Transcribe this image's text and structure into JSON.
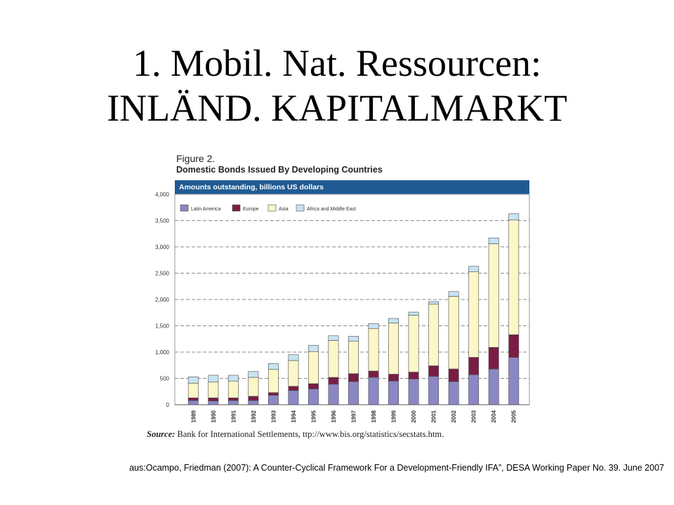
{
  "slide": {
    "title_line1": "1. Mobil. Nat. Ressourcen:",
    "title_line2": "INLÄND. KAPITALMARKT",
    "citation": "aus:Ocampo, Friedman (2007): A Counter-Cyclical Framework For a Development-Friendly IFA”, DESA Working Paper No. 39. June 2007"
  },
  "figure": {
    "label": "Figure 2.",
    "title": "Domestic Bonds Issued By Developing Countries",
    "header": "Amounts outstanding, billions US dollars",
    "source_label": "Source:",
    "source_text": "Bank for International Settlements, ttp://www.bis.org/statistics/secstats.htm."
  },
  "colors": {
    "header_bg": "#1f5b92",
    "latin_america": "#8b87c4",
    "europe": "#7a1d45",
    "asia": "#fbf7c6",
    "africa_middle_east": "#c6e4f2"
  },
  "chart_data": {
    "type": "bar",
    "stacked": true,
    "categories": [
      "1989",
      "1990",
      "1991",
      "1992",
      "1993",
      "1994",
      "1995",
      "1996",
      "1997",
      "1998",
      "1999",
      "2000",
      "2001",
      "2002",
      "2003",
      "2004",
      "2005"
    ],
    "series": [
      {
        "name": "Latin America",
        "values": [
          80,
          70,
          80,
          80,
          180,
          270,
          300,
          390,
          440,
          520,
          450,
          490,
          540,
          440,
          570,
          680,
          900
        ]
      },
      {
        "name": "Europe",
        "values": [
          50,
          60,
          50,
          80,
          50,
          80,
          100,
          130,
          150,
          120,
          130,
          130,
          200,
          240,
          330,
          410,
          430
        ]
      },
      {
        "name": "Asia",
        "values": [
          280,
          300,
          320,
          360,
          440,
          490,
          610,
          700,
          620,
          810,
          970,
          1080,
          1170,
          1380,
          1630,
          1970,
          2180
        ]
      },
      {
        "name": "Africa and Middle East",
        "values": [
          120,
          130,
          110,
          110,
          110,
          110,
          120,
          90,
          90,
          90,
          90,
          60,
          50,
          90,
          100,
          110,
          120
        ]
      }
    ],
    "yticks": [
      "0",
      "500",
      "1,000",
      "1,500",
      "2,000",
      "2,500",
      "3,000",
      "3,500",
      "4,000"
    ],
    "ylim": [
      0,
      4000
    ],
    "legend_position": "top-left",
    "grid": "dashed horizontal"
  }
}
